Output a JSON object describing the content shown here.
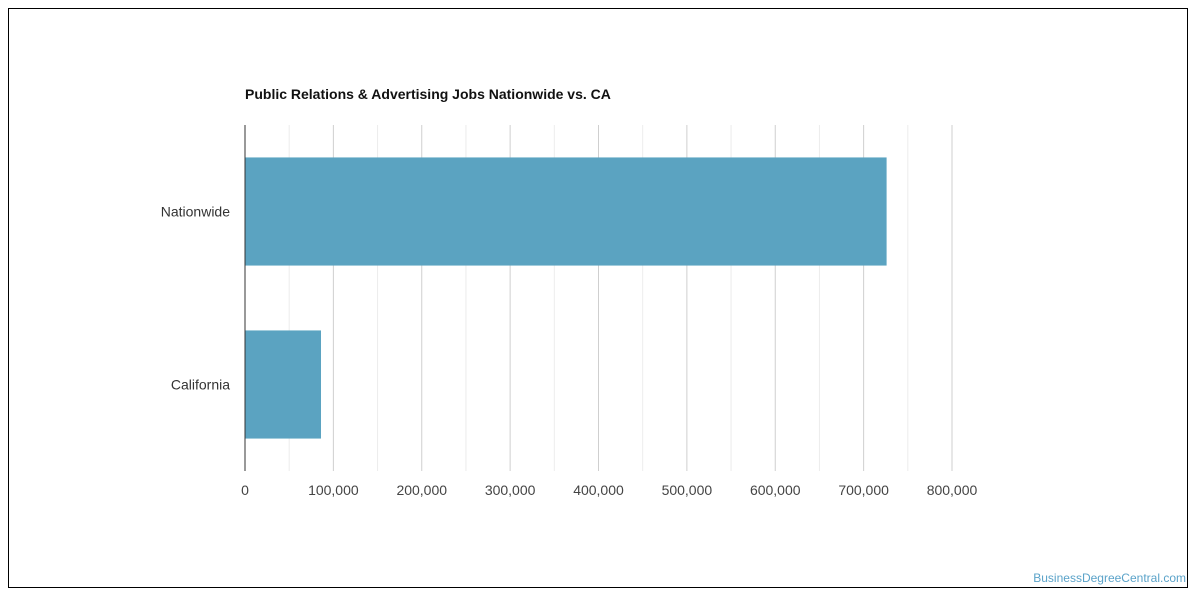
{
  "chart_data": {
    "type": "bar",
    "orientation": "horizontal",
    "title": "Public Relations & Advertising Jobs Nationwide vs. CA",
    "xlabel": "",
    "ylabel": "",
    "categories": [
      "Nationwide",
      "California"
    ],
    "series": [
      {
        "values": [
          726000,
          86000
        ],
        "color": "#5ba3c1"
      }
    ],
    "xlim": [
      0,
      800000
    ],
    "x_ticks": [
      0,
      100000,
      200000,
      300000,
      400000,
      500000,
      600000,
      700000,
      800000
    ],
    "x_tick_labels": [
      "0",
      "100,000",
      "200,000",
      "300,000",
      "400,000",
      "500,000",
      "600,000",
      "700,000",
      "800,000"
    ],
    "grid": true,
    "legend": "none"
  },
  "watermark": "BusinessDegreeCentral.com"
}
